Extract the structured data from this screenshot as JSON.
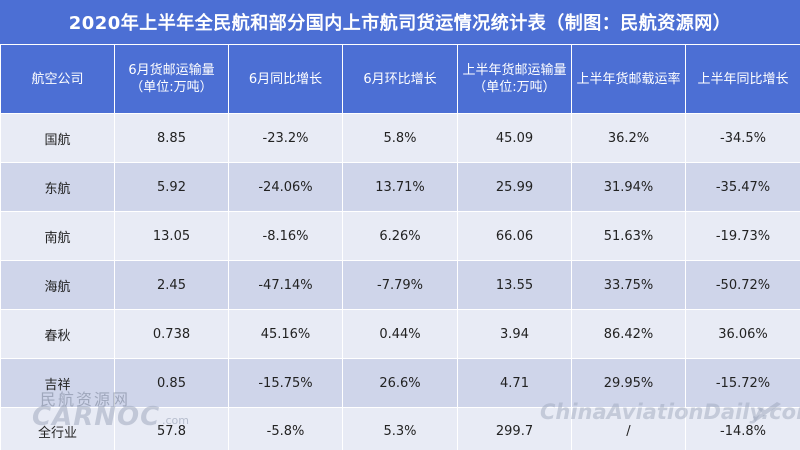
{
  "title": "2020年上半年全民航和部分国内上市航司货运情况统计表（制图：民航资源网）",
  "table": {
    "headers": [
      "航空公司",
      "6月货邮运输量（单位:万吨）",
      "6月同比增长",
      "6月环比增长",
      "上半年货邮运输量（单位:万吨）",
      "上半年货邮载运率",
      "上半年同比增长"
    ],
    "rows": [
      [
        "国航",
        "8.85",
        "-23.2%",
        "5.8%",
        "45.09",
        "36.2%",
        "-34.5%"
      ],
      [
        "东航",
        "5.92",
        "-24.06%",
        "13.71%",
        "25.99",
        "31.94%",
        "-35.47%"
      ],
      [
        "南航",
        "13.05",
        "-8.16%",
        "6.26%",
        "66.06",
        "51.63%",
        "-19.73%"
      ],
      [
        "海航",
        "2.45",
        "-47.14%",
        "-7.79%",
        "13.55",
        "33.75%",
        "-50.72%"
      ],
      [
        "春秋",
        "0.738",
        "45.16%",
        "0.44%",
        "3.94",
        "86.42%",
        "36.06%"
      ],
      [
        "吉祥",
        "0.85",
        "-15.75%",
        "26.6%",
        "4.71",
        "29.95%",
        "-15.72%"
      ],
      [
        "全行业",
        "57.8",
        "-5.8%",
        "5.3%",
        "299.7",
        "/",
        "-14.8%"
      ]
    ]
  },
  "watermarks": {
    "left_cn": "民航资源网",
    "left_logo": "CARNOC",
    "left_suffix": ".com",
    "right_text": "ChinaAviationDaily.com"
  },
  "colors": {
    "header_bg": "#4c6fd4",
    "row_light": "#e8ebf5",
    "row_dark": "#cfd5ea",
    "text": "#222222"
  }
}
